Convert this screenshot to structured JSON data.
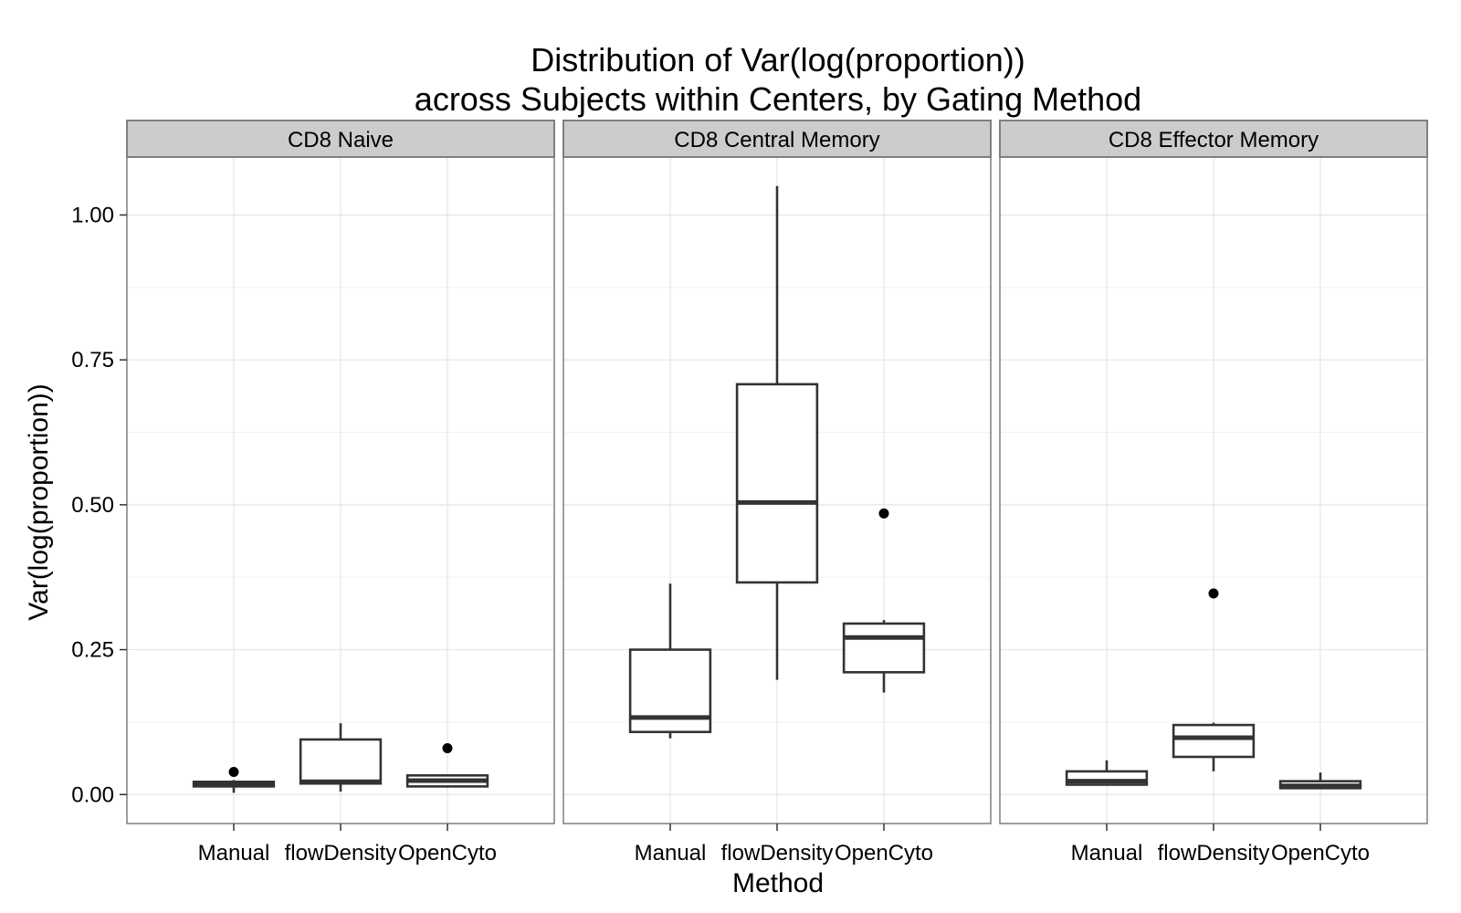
{
  "chart_data": {
    "type": "boxplot",
    "title": [
      "Distribution of Var(log(proportion))",
      "across Subjects within Centers, by Gating Method"
    ],
    "xlabel": "Method",
    "ylabel": "Var(log(proportion))",
    "ylim": [
      -0.05,
      1.1
    ],
    "yticks": [
      0.0,
      0.25,
      0.5,
      0.75,
      1.0
    ],
    "ytick_labels": [
      "0.00",
      "0.25",
      "0.50",
      "0.75",
      "1.00"
    ],
    "categories": [
      "Manual",
      "flowDensity",
      "OpenCyto"
    ],
    "grid": true,
    "facets": [
      {
        "label": "CD8 Naive",
        "boxes": [
          {
            "method": "Manual",
            "whisker_low": 0.003,
            "q1": 0.014,
            "median": 0.019,
            "q3": 0.022,
            "whisker_high": 0.025,
            "outliers": [
              0.039
            ]
          },
          {
            "method": "flowDensity",
            "whisker_low": 0.005,
            "q1": 0.019,
            "median": 0.022,
            "q3": 0.095,
            "whisker_high": 0.123,
            "outliers": []
          },
          {
            "method": "OpenCyto",
            "whisker_low": 0.012,
            "q1": 0.014,
            "median": 0.024,
            "q3": 0.033,
            "whisker_high": 0.035,
            "outliers": [
              0.08
            ]
          }
        ]
      },
      {
        "label": "CD8 Central Memory",
        "boxes": [
          {
            "method": "Manual",
            "whisker_low": 0.097,
            "q1": 0.108,
            "median": 0.133,
            "q3": 0.25,
            "whisker_high": 0.364,
            "outliers": []
          },
          {
            "method": "flowDensity",
            "whisker_low": 0.198,
            "q1": 0.366,
            "median": 0.504,
            "q3": 0.708,
            "whisker_high": 1.05,
            "outliers": []
          },
          {
            "method": "OpenCyto",
            "whisker_low": 0.176,
            "q1": 0.211,
            "median": 0.271,
            "q3": 0.295,
            "whisker_high": 0.301,
            "outliers": [
              0.485
            ]
          }
        ]
      },
      {
        "label": "CD8 Effector Memory",
        "boxes": [
          {
            "method": "Manual",
            "whisker_low": 0.016,
            "q1": 0.017,
            "median": 0.023,
            "q3": 0.04,
            "whisker_high": 0.059,
            "outliers": []
          },
          {
            "method": "flowDensity",
            "whisker_low": 0.04,
            "q1": 0.065,
            "median": 0.098,
            "q3": 0.12,
            "whisker_high": 0.124,
            "outliers": [
              0.347
            ]
          },
          {
            "method": "OpenCyto",
            "whisker_low": 0.01,
            "q1": 0.011,
            "median": 0.015,
            "q3": 0.023,
            "whisker_high": 0.038,
            "outliers": []
          }
        ]
      }
    ]
  }
}
